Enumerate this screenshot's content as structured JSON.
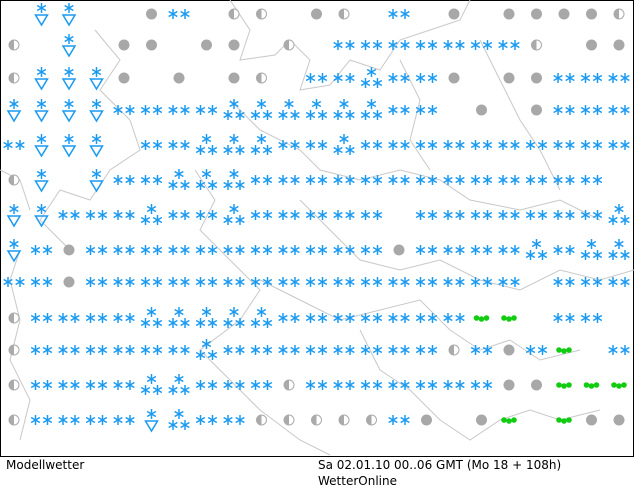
{
  "footer": {
    "left": "Modellwetter",
    "right": "Sa 02.01.10 00..06 GMT (Mo 18 + 108h)",
    "brand": "WetterOnline"
  }
}
